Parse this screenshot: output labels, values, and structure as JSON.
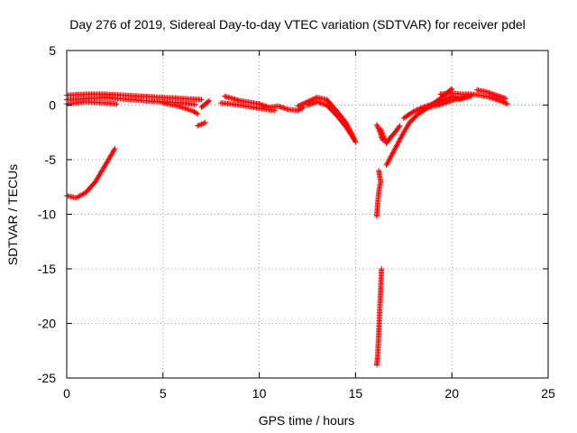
{
  "chart_data": {
    "type": "scatter",
    "title": "Day 276 of 2019, Sidereal Day-to-day VTEC variation (SDTVAR) for receiver pdel",
    "xlabel": "GPS time / hours",
    "ylabel": "SDTVAR / TECUs",
    "xlim": [
      0,
      25
    ],
    "ylim": [
      -25,
      5
    ],
    "xticks": [
      0,
      5,
      10,
      15,
      20,
      25
    ],
    "yticks": [
      -25,
      -20,
      -15,
      -10,
      -5,
      0,
      5
    ],
    "grid": true,
    "marker": "+",
    "series": [
      {
        "name": "SDTVAR",
        "color": "#ff0000",
        "arcs": [
          [
            [
              0.0,
              0.5
            ],
            [
              1.0,
              0.6
            ],
            [
              2.0,
              0.7
            ],
            [
              3.0,
              0.55
            ],
            [
              4.0,
              0.4
            ],
            [
              5.0,
              0.3
            ],
            [
              6.0,
              0.2
            ],
            [
              6.7,
              0.05
            ]
          ],
          [
            [
              0.0,
              0.9
            ],
            [
              1.0,
              1.0
            ],
            [
              2.0,
              1.0
            ],
            [
              3.0,
              0.9
            ],
            [
              4.0,
              0.8
            ],
            [
              5.0,
              0.7
            ],
            [
              6.0,
              0.6
            ],
            [
              7.0,
              0.5
            ]
          ],
          [
            [
              0.0,
              0.1
            ],
            [
              1.0,
              0.3
            ],
            [
              2.0,
              0.2
            ],
            [
              2.6,
              0.1
            ]
          ],
          [
            [
              5.0,
              0.2
            ],
            [
              5.8,
              -0.1
            ],
            [
              6.5,
              -0.5
            ],
            [
              6.8,
              -0.8
            ]
          ],
          [
            [
              7.0,
              -0.2
            ],
            [
              7.4,
              0.4
            ]
          ],
          [
            [
              6.8,
              -1.9
            ],
            [
              7.2,
              -1.6
            ]
          ],
          [
            [
              0.0,
              -8.3
            ],
            [
              0.5,
              -8.5
            ],
            [
              1.0,
              -8.0
            ],
            [
              1.5,
              -7.0
            ],
            [
              2.0,
              -5.5
            ],
            [
              2.5,
              -4.0
            ]
          ],
          [
            [
              8.2,
              0.8
            ],
            [
              9.0,
              0.4
            ],
            [
              10.0,
              0.1
            ],
            [
              10.5,
              -0.2
            ],
            [
              11.0,
              -0.1
            ],
            [
              11.5,
              -0.4
            ],
            [
              12.0,
              -0.5
            ],
            [
              12.3,
              -0.2
            ]
          ],
          [
            [
              8.0,
              0.2
            ],
            [
              9.0,
              0.0
            ],
            [
              10.0,
              -0.3
            ],
            [
              10.8,
              -0.5
            ]
          ],
          [
            [
              12.0,
              -0.1
            ],
            [
              12.5,
              0.3
            ],
            [
              13.0,
              0.7
            ],
            [
              13.5,
              0.5
            ],
            [
              14.0,
              -0.5
            ],
            [
              14.5,
              -1.6
            ],
            [
              14.8,
              -2.6
            ],
            [
              15.0,
              -3.4
            ]
          ],
          [
            [
              12.5,
              0.0
            ],
            [
              13.0,
              0.3
            ],
            [
              13.5,
              0.0
            ],
            [
              14.0,
              -0.9
            ],
            [
              14.5,
              -2.0
            ],
            [
              14.9,
              -3.1
            ]
          ],
          [
            [
              16.1,
              -1.8
            ],
            [
              16.25,
              -2.4
            ],
            [
              16.4,
              -3.2
            ]
          ],
          [
            [
              16.2,
              -6.0
            ],
            [
              16.3,
              -7.0
            ],
            [
              16.2,
              -8.0
            ],
            [
              16.15,
              -9.0
            ],
            [
              16.1,
              -10.2
            ]
          ],
          [
            [
              16.35,
              -15.0
            ],
            [
              16.3,
              -17.0
            ],
            [
              16.25,
              -19.0
            ],
            [
              16.2,
              -21.0
            ],
            [
              16.15,
              -23.0
            ],
            [
              16.1,
              -23.8
            ]
          ],
          [
            [
              16.3,
              -2.2
            ],
            [
              16.6,
              -3.5
            ],
            [
              16.8,
              -3.0
            ],
            [
              17.0,
              -2.6
            ],
            [
              17.3,
              -1.9
            ]
          ],
          [
            [
              16.6,
              -5.5
            ],
            [
              16.9,
              -4.5
            ],
            [
              17.2,
              -3.5
            ],
            [
              17.5,
              -2.5
            ],
            [
              17.8,
              -1.6
            ],
            [
              18.2,
              -0.9
            ],
            [
              18.6,
              -0.4
            ],
            [
              19.0,
              0.1
            ],
            [
              19.4,
              0.6
            ],
            [
              19.8,
              1.2
            ],
            [
              20.0,
              1.5
            ]
          ],
          [
            [
              17.5,
              -1.2
            ],
            [
              18.0,
              -0.6
            ],
            [
              18.5,
              -0.2
            ],
            [
              19.0,
              0.1
            ],
            [
              19.5,
              0.4
            ],
            [
              20.0,
              0.8
            ],
            [
              20.4,
              0.5
            ],
            [
              21.0,
              0.9
            ]
          ],
          [
            [
              18.3,
              -0.6
            ],
            [
              18.8,
              -0.2
            ],
            [
              19.3,
              0.0
            ],
            [
              19.8,
              0.3
            ],
            [
              20.3,
              0.6
            ],
            [
              21.0,
              0.8
            ]
          ],
          [
            [
              19.4,
              1.0
            ],
            [
              20.0,
              1.1
            ],
            [
              20.5,
              1.0
            ],
            [
              21.0,
              1.0
            ],
            [
              21.5,
              0.9
            ],
            [
              22.0,
              0.7
            ],
            [
              22.5,
              0.4
            ],
            [
              22.9,
              0.1
            ]
          ],
          [
            [
              21.3,
              1.4
            ],
            [
              21.8,
              1.2
            ],
            [
              22.3,
              0.9
            ],
            [
              22.8,
              0.6
            ]
          ]
        ]
      }
    ]
  }
}
